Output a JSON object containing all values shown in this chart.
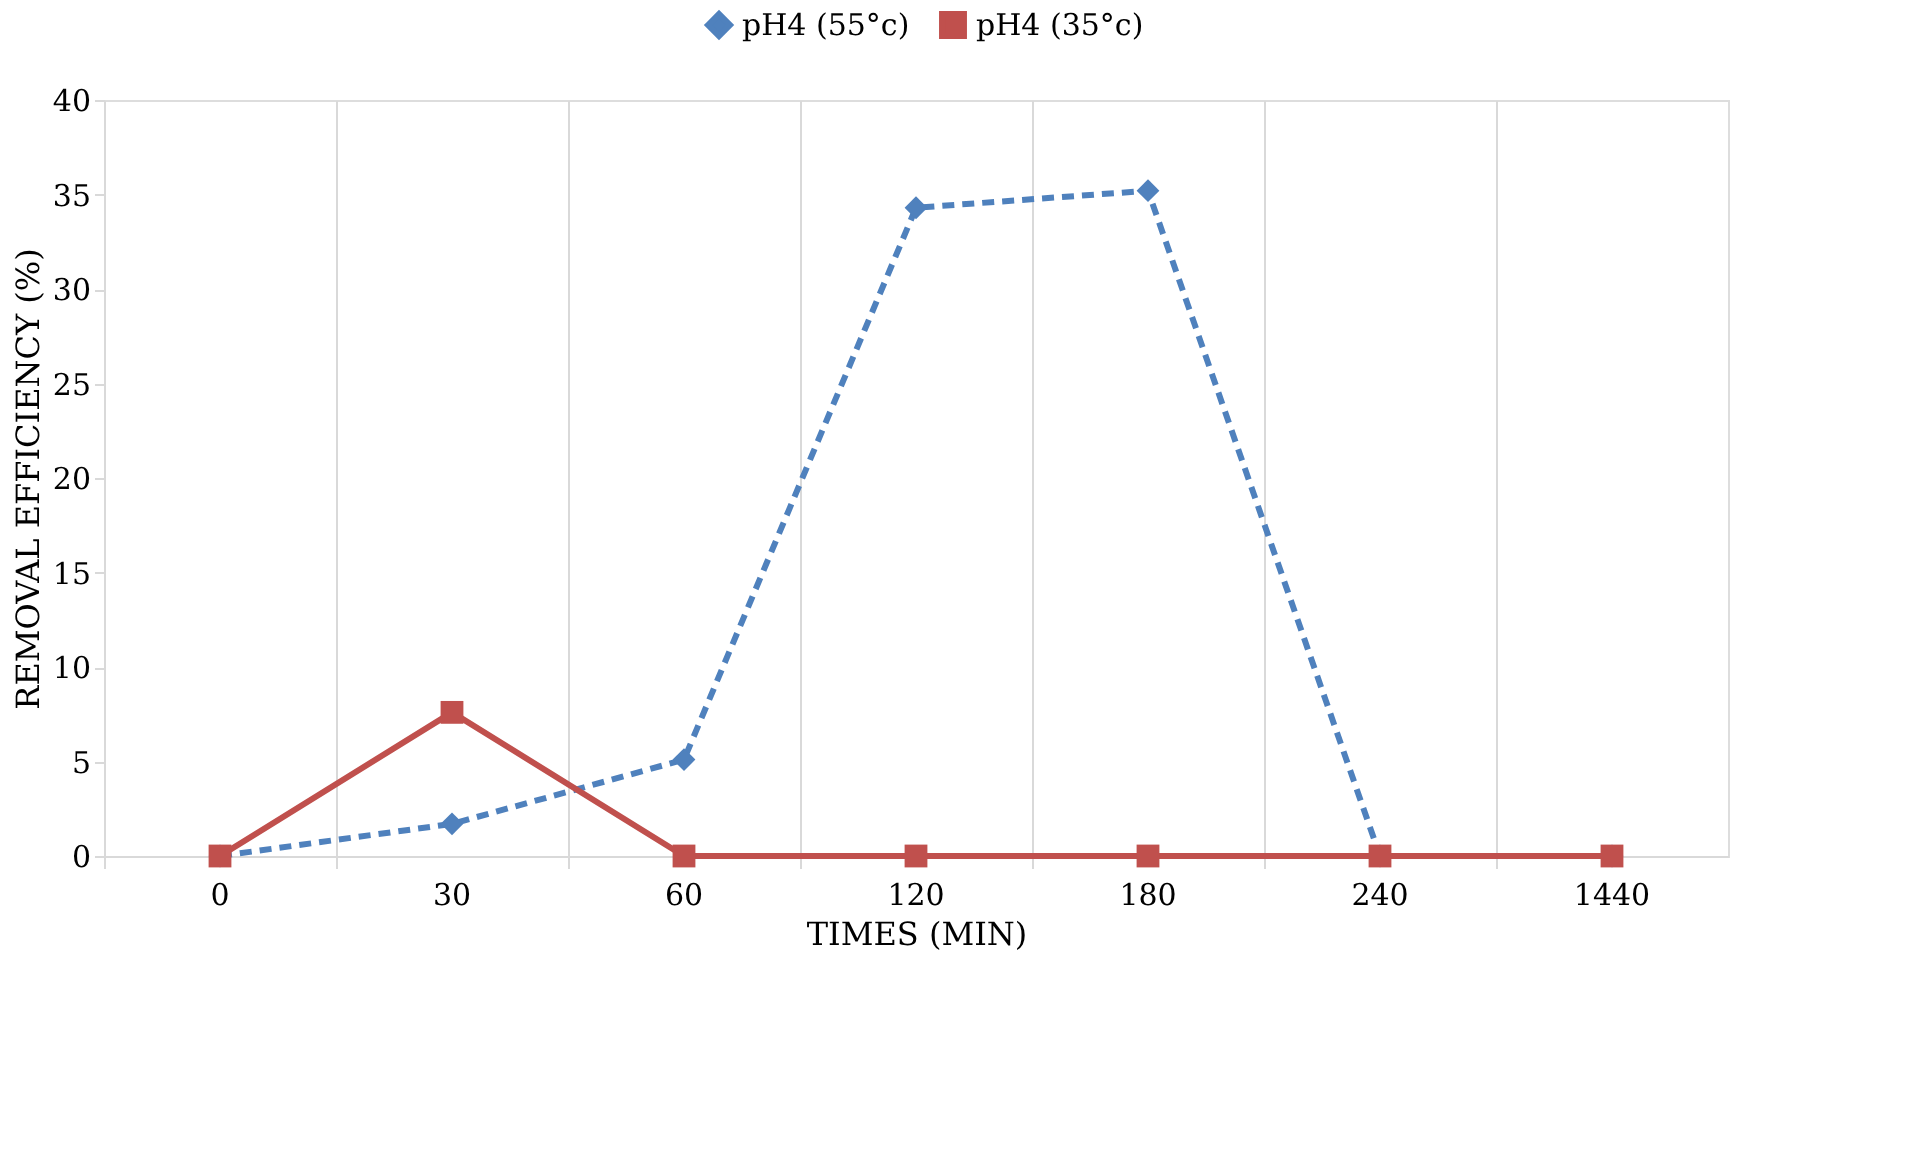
{
  "chart_data": {
    "type": "line",
    "xlabel": "TIMES (MIN)",
    "ylabel": "REMOVAL EFFICIENCY (%)",
    "categories": [
      "0",
      "30",
      "60",
      "120",
      "180",
      "240",
      "1440"
    ],
    "series": [
      {
        "name": "pH4 (55°c)",
        "color": "#4f81bd",
        "marker": "diamond",
        "line_style": "dashed",
        "values": [
          0,
          1.7,
          5.1,
          34.3,
          35.2,
          0,
          0
        ]
      },
      {
        "name": "pH4 (35°c)",
        "color": "#c0504d",
        "marker": "square",
        "line_style": "solid",
        "values": [
          0,
          7.6,
          0,
          0,
          0,
          0,
          0
        ]
      }
    ],
    "ylim": [
      0,
      40
    ],
    "yticks": [
      0,
      5,
      10,
      15,
      20,
      25,
      30,
      35,
      40
    ],
    "grid": "x",
    "legend": "top"
  }
}
